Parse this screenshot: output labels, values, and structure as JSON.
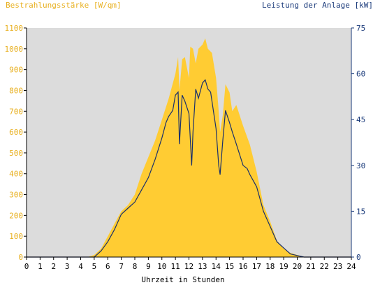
{
  "chart_data": {
    "type": "area",
    "left_axis_title": "Bestrahlungsstärke [W/qm]",
    "right_axis_title": "Leistung der Anlage [kW]",
    "xlabel": "Uhrzeit in Stunden",
    "xlim": [
      0,
      24
    ],
    "ylim_left": [
      0,
      1100
    ],
    "ylim_right": [
      0,
      75
    ],
    "x_ticks": [
      "0",
      "1",
      "2",
      "3",
      "4",
      "5",
      "6",
      "7",
      "8",
      "9",
      "10",
      "11",
      "12",
      "13",
      "14",
      "15",
      "16",
      "17",
      "18",
      "19",
      "20",
      "21",
      "22",
      "23",
      "24"
    ],
    "y_ticks_left": [
      "0",
      "100",
      "200",
      "300",
      "400",
      "500",
      "600",
      "700",
      "800",
      "900",
      "1000",
      "1100"
    ],
    "y_ticks_right": [
      "0",
      "15",
      "30",
      "45",
      "60",
      "75"
    ],
    "grid": false,
    "colors": {
      "plot_background": "#dcdcdc",
      "irradiance_fill": "#ffcc33",
      "power_line": "#1a2f6b",
      "left_axis_text": "#e8b020",
      "right_axis_text": "#1a3a7a",
      "axis_text": "#000000"
    },
    "series": [
      {
        "kind": "area",
        "axis": "left",
        "x": [
          0,
          4.5,
          5,
          5.5,
          6,
          6.5,
          7,
          7.5,
          8,
          8.5,
          9,
          9.5,
          10,
          10.5,
          11,
          11.2,
          11.3,
          11.5,
          11.7,
          12,
          12.1,
          12.3,
          12.5,
          12.7,
          13,
          13.2,
          13.4,
          13.7,
          14,
          14.2,
          14.3,
          14.5,
          14.7,
          15,
          15.2,
          15.5,
          16,
          16.5,
          17,
          17.5,
          18,
          18.5,
          19,
          19.5,
          20,
          20.5,
          24
        ],
        "values": [
          0,
          0,
          10,
          40,
          100,
          160,
          220,
          250,
          300,
          400,
          480,
          560,
          660,
          760,
          880,
          960,
          800,
          950,
          960,
          860,
          1010,
          1000,
          930,
          1000,
          1020,
          1050,
          1000,
          980,
          860,
          700,
          600,
          680,
          830,
          790,
          700,
          730,
          630,
          540,
          410,
          250,
          170,
          80,
          40,
          20,
          10,
          0,
          0
        ]
      },
      {
        "kind": "line",
        "axis": "right",
        "x": [
          0,
          5,
          5.5,
          6,
          6.5,
          7,
          7.5,
          8,
          8.5,
          9,
          9.5,
          10,
          10.3,
          10.5,
          10.8,
          11,
          11.2,
          11.3,
          11.5,
          11.7,
          12,
          12.2,
          12.3,
          12.5,
          12.7,
          13,
          13.2,
          13.4,
          13.6,
          14,
          14.2,
          14.3,
          14.5,
          14.7,
          15,
          15.2,
          15.5,
          16,
          16.3,
          16.5,
          17,
          17.5,
          18,
          18.5,
          19,
          19.5,
          20,
          20.5,
          24
        ],
        "values": [
          0,
          0,
          2,
          5,
          9,
          14,
          16,
          18,
          22,
          26,
          32,
          39,
          44,
          46,
          48,
          53,
          54,
          37,
          53,
          51,
          47,
          30,
          41,
          55,
          52,
          57,
          58,
          55,
          54,
          42,
          30,
          27,
          38,
          48,
          44,
          41,
          37,
          30,
          29,
          27,
          23,
          15,
          10,
          5,
          3,
          1,
          0.5,
          0,
          0
        ]
      }
    ]
  }
}
